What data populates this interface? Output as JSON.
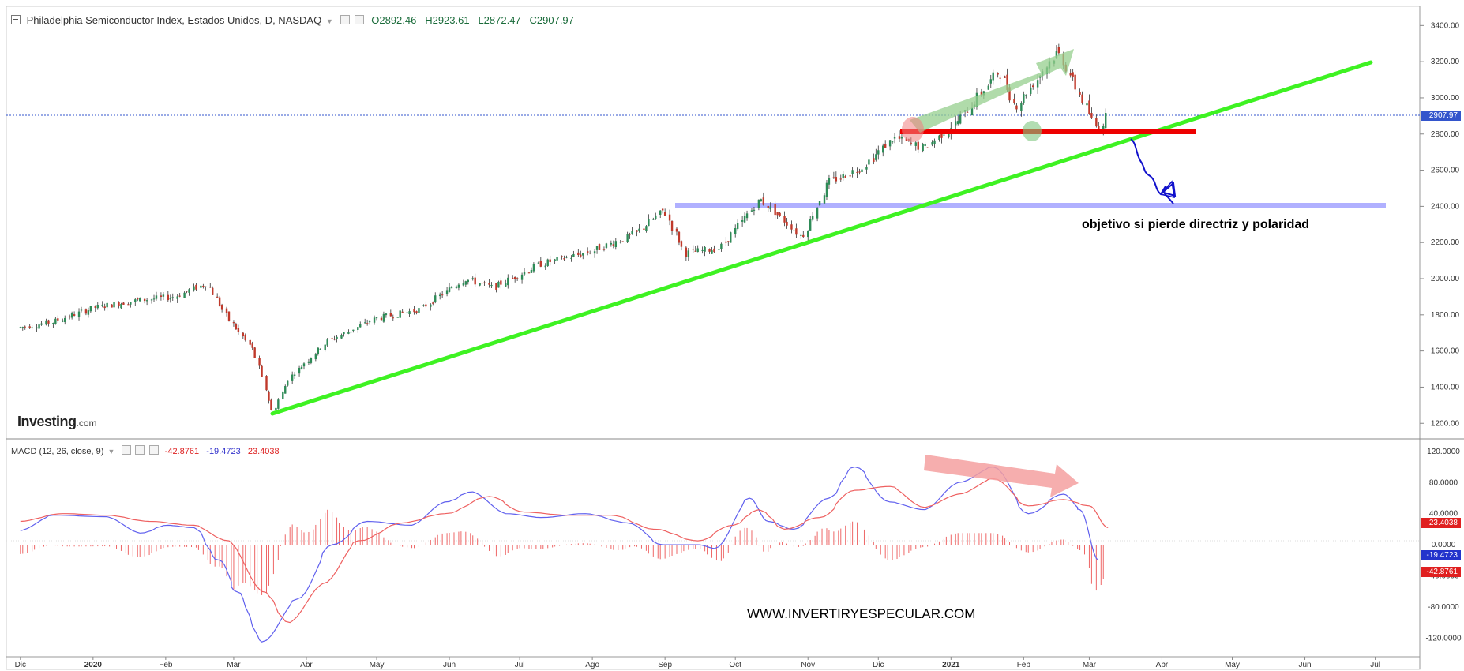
{
  "header": {
    "title": "Philadelphia Semiconductor Index, Estados Unidos, D, NASDAQ",
    "open": "O2892.46",
    "high": "H2923.61",
    "low": "L2872.47",
    "close": "C2907.97"
  },
  "macd_header": {
    "name": "MACD (12, 26, close, 9)",
    "hist_value": "-42.8761",
    "macd_value": "-19.4723",
    "signal_value": "23.4038"
  },
  "logo": {
    "brand": "Investing",
    "domain": ".com"
  },
  "annotations": {
    "target_text": "objetivo si pierde directriz y polaridad",
    "website": "WWW.INVERTIRYESPECULAR.COM"
  },
  "colors": {
    "up_candle": "#2e8b57",
    "down_candle": "#c0392b",
    "trendline": "#33ee22",
    "resistance": "#ee0000",
    "target_band": "#a9a9ff",
    "macd_line": "#5555ee",
    "signal_line": "#ee5555",
    "histogram": "#ee6666",
    "price_tag": "#3355cc"
  },
  "chart_data": [
    {
      "type": "candlestick",
      "title": "Philadelphia Semiconductor Index, Estados Unidos, D, NASDAQ",
      "x_ticks": [
        "Dic",
        "2020",
        "Feb",
        "Mar",
        "Abr",
        "May",
        "Jun",
        "Jul",
        "Ago",
        "Sep",
        "Oct",
        "Nov",
        "Dic",
        "2021",
        "Feb",
        "Mar",
        "Abr",
        "May",
        "Jun",
        "Jul"
      ],
      "y_ticks": [
        "3400.00",
        "3200.00",
        "3000.00",
        "2800.00",
        "2600.00",
        "2400.00",
        "2200.00",
        "2000.00",
        "1800.00",
        "1600.00",
        "1400.00",
        "1200.00"
      ],
      "ylim": [
        1140,
        3480
      ],
      "last_price": "2907.97",
      "price_path": [
        [
          "2019-12-01",
          1730
        ],
        [
          "2019-12-15",
          1760
        ],
        [
          "2020-01-02",
          1840
        ],
        [
          "2020-01-20",
          1880
        ],
        [
          "2020-02-05",
          1900
        ],
        [
          "2020-02-19",
          1975
        ],
        [
          "2020-02-28",
          1780
        ],
        [
          "2020-03-10",
          1600
        ],
        [
          "2020-03-18",
          1260
        ],
        [
          "2020-03-25",
          1450
        ],
        [
          "2020-04-10",
          1650
        ],
        [
          "2020-05-01",
          1780
        ],
        [
          "2020-05-20",
          1830
        ],
        [
          "2020-06-08",
          2000
        ],
        [
          "2020-06-20",
          1950
        ],
        [
          "2020-07-10",
          2080
        ],
        [
          "2020-08-01",
          2150
        ],
        [
          "2020-08-20",
          2250
        ],
        [
          "2020-09-01",
          2380
        ],
        [
          "2020-09-10",
          2140
        ],
        [
          "2020-09-25",
          2170
        ],
        [
          "2020-10-12",
          2440
        ],
        [
          "2020-10-30",
          2230
        ],
        [
          "2020-11-10",
          2530
        ],
        [
          "2020-11-25",
          2620
        ],
        [
          "2020-12-08",
          2780
        ],
        [
          "2020-12-21",
          2720
        ],
        [
          "2021-01-05",
          2880
        ],
        [
          "2021-01-22",
          3150
        ],
        [
          "2021-01-29",
          2950
        ],
        [
          "2021-02-16",
          3260
        ],
        [
          "2021-02-26",
          3000
        ],
        [
          "2021-03-05",
          2820
        ],
        [
          "2021-03-09",
          2907.97
        ]
      ],
      "trendline": [
        [
          "2020-03-18",
          1235
        ],
        [
          "2021-06-15",
          3200
        ]
      ],
      "resistance_level": [
        [
          "2020-12-01",
          2810
        ],
        [
          "2021-04-10",
          2810
        ]
      ],
      "target_band": [
        [
          "2020-09-01",
          2400
        ],
        [
          "2021-07-25",
          2400
        ]
      ],
      "annotation": "objetivo si pierde directriz y polaridad"
    },
    {
      "type": "line",
      "title": "MACD (12, 26, close, 9)",
      "y_ticks": [
        "120.0000",
        "80.0000",
        "40.0000",
        "0.0000",
        "-40.0000",
        "-80.0000",
        "-120.0000"
      ],
      "ylim": [
        -138,
        130
      ],
      "series": [
        {
          "name": "MACD",
          "last": "-19.4723",
          "values": [
            [
              0,
              18
            ],
            [
              0.04,
              38
            ],
            [
              0.1,
              36
            ],
            [
              0.14,
              15
            ],
            [
              0.17,
              25
            ],
            [
              0.2,
              22
            ],
            [
              0.23,
              -20
            ],
            [
              0.25,
              -60
            ],
            [
              0.28,
              -125
            ],
            [
              0.32,
              -70
            ],
            [
              0.36,
              0
            ],
            [
              0.4,
              30
            ],
            [
              0.45,
              25
            ],
            [
              0.49,
              55
            ],
            [
              0.52,
              68
            ],
            [
              0.56,
              40
            ],
            [
              0.6,
              35
            ],
            [
              0.65,
              40
            ],
            [
              0.7,
              28
            ],
            [
              0.74,
              0
            ],
            [
              0.78,
              0
            ],
            [
              0.8,
              -5
            ],
            [
              0.84,
              60
            ],
            [
              0.86,
              30
            ],
            [
              0.89,
              20
            ],
            [
              0.93,
              60
            ],
            [
              0.96,
              100
            ],
            [
              1.0,
              55
            ],
            [
              1.04,
              45
            ],
            [
              1.08,
              80
            ],
            [
              1.12,
              100
            ],
            [
              1.16,
              40
            ],
            [
              1.2,
              65
            ],
            [
              1.22,
              45
            ],
            [
              1.24,
              -20
            ]
          ]
        },
        {
          "name": "Signal",
          "last": "23.4038",
          "values": [
            [
              0,
              30
            ],
            [
              0.05,
              40
            ],
            [
              0.1,
              38
            ],
            [
              0.15,
              30
            ],
            [
              0.2,
              25
            ],
            [
              0.24,
              5
            ],
            [
              0.28,
              -60
            ],
            [
              0.31,
              -100
            ],
            [
              0.35,
              -50
            ],
            [
              0.39,
              5
            ],
            [
              0.44,
              28
            ],
            [
              0.49,
              40
            ],
            [
              0.54,
              62
            ],
            [
              0.58,
              42
            ],
            [
              0.63,
              38
            ],
            [
              0.68,
              38
            ],
            [
              0.73,
              20
            ],
            [
              0.78,
              5
            ],
            [
              0.82,
              25
            ],
            [
              0.85,
              45
            ],
            [
              0.88,
              20
            ],
            [
              0.92,
              35
            ],
            [
              0.96,
              70
            ],
            [
              1.0,
              75
            ],
            [
              1.04,
              48
            ],
            [
              1.08,
              65
            ],
            [
              1.12,
              85
            ],
            [
              1.16,
              50
            ],
            [
              1.2,
              58
            ],
            [
              1.23,
              50
            ],
            [
              1.25,
              22
            ]
          ]
        }
      ],
      "histogram_last": "-42.8761"
    }
  ]
}
